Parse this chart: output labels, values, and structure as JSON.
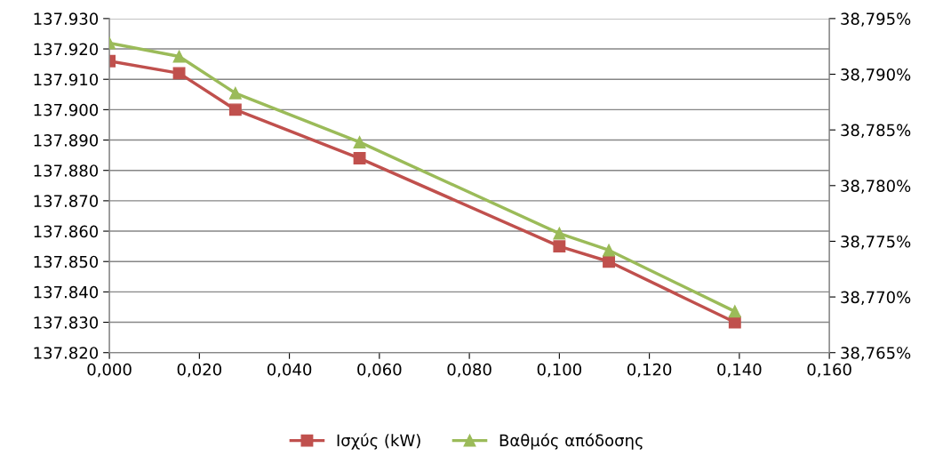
{
  "chart_data": {
    "type": "line",
    "x": [
      0.0,
      0.0155,
      0.028,
      0.0556,
      0.1,
      0.111,
      0.139
    ],
    "series": [
      {
        "name": "Ισχύς (kW)",
        "color": "#c0504d",
        "marker": "square",
        "values": [
          137916,
          137912,
          137900,
          137884,
          137855,
          137850,
          137830
        ]
      },
      {
        "name": "Βαθμός απόδοσης",
        "color": "#9bbb59",
        "marker": "triangle",
        "axis": "y2",
        "values": [
          38.7928,
          38.7916,
          38.7883,
          38.7839,
          38.7757,
          38.7742,
          38.7687
        ]
      }
    ],
    "xlim": [
      0,
      0.16
    ],
    "xticks": [
      {
        "value": 0,
        "label": "0,000"
      },
      {
        "value": 0.02,
        "label": "0,020"
      },
      {
        "value": 0.04,
        "label": "0,040"
      },
      {
        "value": 0.06,
        "label": "0,060"
      },
      {
        "value": 0.08,
        "label": "0,080"
      },
      {
        "value": 0.1,
        "label": "0,100"
      },
      {
        "value": 0.12,
        "label": "0,120"
      },
      {
        "value": 0.14,
        "label": "0,140"
      },
      {
        "value": 0.16,
        "label": "0,160"
      }
    ],
    "ylim": [
      137820,
      137930
    ],
    "yticks": [
      {
        "value": 137820,
        "label": "137.820"
      },
      {
        "value": 137830,
        "label": "137.830"
      },
      {
        "value": 137840,
        "label": "137.840"
      },
      {
        "value": 137850,
        "label": "137.850"
      },
      {
        "value": 137860,
        "label": "137.860"
      },
      {
        "value": 137870,
        "label": "137.870"
      },
      {
        "value": 137880,
        "label": "137.880"
      },
      {
        "value": 137890,
        "label": "137.890"
      },
      {
        "value": 137900,
        "label": "137.900"
      },
      {
        "value": 137910,
        "label": "137.910"
      },
      {
        "value": 137920,
        "label": "137.920"
      },
      {
        "value": 137930,
        "label": "137.930"
      }
    ],
    "y2lim": [
      38.765,
      38.795
    ],
    "y2ticks": [
      {
        "value": 38.765,
        "label": "38,765%"
      },
      {
        "value": 38.77,
        "label": "38,770%"
      },
      {
        "value": 38.775,
        "label": "38,775%"
      },
      {
        "value": 38.78,
        "label": "38,780%"
      },
      {
        "value": 38.785,
        "label": "38,785%"
      },
      {
        "value": 38.79,
        "label": "38,790%"
      },
      {
        "value": 38.795,
        "label": "38,795%"
      }
    ],
    "grid": "y",
    "legend": "bottom",
    "line_style": "solid"
  }
}
